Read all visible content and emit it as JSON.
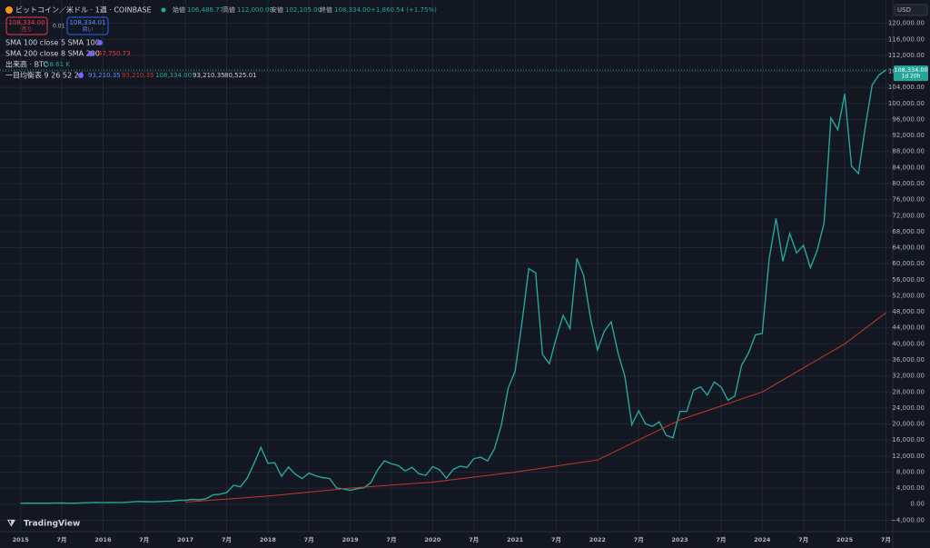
{
  "header": {
    "symbol": "ビットコイン／米ドル · 1週 · COINBASE",
    "open_label": "始値",
    "open": "106,488.77",
    "high_label": "高値",
    "high": "112,000.00",
    "low_label": "安値",
    "low": "102,105.00",
    "close_label": "終値",
    "close": "108,334.00",
    "change": "+1,860.54 (+1.75%)",
    "sell_price": "108,334.00",
    "sell": "売り",
    "spread": "0.01",
    "buy_price": "108,334.01",
    "buy": "買い",
    "sma100": "SMA 100 close 5 SMA 100",
    "sma200": "SMA 200 close 8 SMA 200",
    "sma200_value": "47,750.73",
    "volume": "出来高 · BTC",
    "volume_value": "58.61 K",
    "ichimoku": "一目均衡表 9 26 52 26",
    "ichimoku_values": [
      "93,210.35",
      "93,210.35",
      "108,334.00",
      "93,210.35",
      "80,525.01"
    ],
    "currency": "USD",
    "countdown": "1d 20h",
    "logo": "TradingView"
  },
  "chart_data": {
    "type": "line",
    "grid": true,
    "xlim": [
      "2014-10",
      "2025-08"
    ],
    "ylim": [
      -8000,
      124000
    ],
    "last_price": {
      "value": 108334,
      "label": "108,334.00"
    },
    "series": [
      {
        "name": "BTC",
        "color": "#26a69a",
        "x": [
          "2015-01",
          "2015-02",
          "2015-03",
          "2015-04",
          "2015-05",
          "2015-06",
          "2015-07",
          "2015-08",
          "2015-09",
          "2015-10",
          "2015-11",
          "2015-12",
          "2016-01",
          "2016-02",
          "2016-03",
          "2016-04",
          "2016-05",
          "2016-06",
          "2016-07",
          "2016-08",
          "2016-09",
          "2016-10",
          "2016-11",
          "2016-12",
          "2017-01",
          "2017-02",
          "2017-03",
          "2017-04",
          "2017-05",
          "2017-06",
          "2017-07",
          "2017-08",
          "2017-09",
          "2017-10",
          "2017-11",
          "2017-12",
          "2018-01",
          "2018-02",
          "2018-03",
          "2018-04",
          "2018-05",
          "2018-06",
          "2018-07",
          "2018-08",
          "2018-09",
          "2018-10",
          "2018-11",
          "2018-12",
          "2019-01",
          "2019-02",
          "2019-03",
          "2019-04",
          "2019-05",
          "2019-06",
          "2019-07",
          "2019-08",
          "2019-09",
          "2019-10",
          "2019-11",
          "2019-12",
          "2020-01",
          "2020-02",
          "2020-03",
          "2020-04",
          "2020-05",
          "2020-06",
          "2020-07",
          "2020-08",
          "2020-09",
          "2020-10",
          "2020-11",
          "2020-12",
          "2021-01",
          "2021-02",
          "2021-03",
          "2021-04",
          "2021-05",
          "2021-06",
          "2021-07",
          "2021-08",
          "2021-09",
          "2021-10",
          "2021-11",
          "2021-12",
          "2022-01",
          "2022-02",
          "2022-03",
          "2022-04",
          "2022-05",
          "2022-06",
          "2022-07",
          "2022-08",
          "2022-09",
          "2022-10",
          "2022-11",
          "2022-12",
          "2023-01",
          "2023-02",
          "2023-03",
          "2023-04",
          "2023-05",
          "2023-06",
          "2023-07",
          "2023-08",
          "2023-09",
          "2023-10",
          "2023-11",
          "2023-12",
          "2024-01",
          "2024-02",
          "2024-03",
          "2024-04",
          "2024-05",
          "2024-06",
          "2024-07",
          "2024-08",
          "2024-09",
          "2024-10",
          "2024-11",
          "2024-12",
          "2025-01",
          "2025-02",
          "2025-03",
          "2025-04",
          "2025-05",
          "2025-06",
          "2025-07"
        ],
        "values": [
          217,
          254,
          244,
          236,
          230,
          263,
          284,
          230,
          236,
          314,
          377,
          430,
          368,
          437,
          416,
          448,
          531,
          673,
          624,
          575,
          609,
          698,
          742,
          963,
          970,
          1190,
          1080,
          1350,
          2300,
          2480,
          2875,
          4700,
          4340,
          6470,
          10200,
          14150,
          10220,
          10330,
          6930,
          9240,
          7500,
          6400,
          7730,
          7030,
          6630,
          6370,
          4040,
          3740,
          3460,
          3850,
          4100,
          5350,
          8570,
          10820,
          10080,
          9630,
          8290,
          9200,
          7570,
          7190,
          9350,
          8600,
          6440,
          8660,
          9460,
          9140,
          11350,
          11700,
          10780,
          13800,
          19700,
          28990,
          33100,
          45240,
          58800,
          57700,
          37300,
          35040,
          41500,
          47100,
          43800,
          61300,
          57000,
          46300,
          38500,
          43200,
          45500,
          37700,
          31800,
          19800,
          23300,
          20050,
          19430,
          20500,
          17170,
          16550,
          23140,
          23150,
          28480,
          29270,
          27220,
          30480,
          29230,
          25940,
          26970,
          34660,
          37720,
          42270,
          42580,
          61200,
          71300,
          60640,
          67500,
          62700,
          64600,
          58970,
          63300,
          70200,
          96400,
          93400,
          102400,
          84350,
          82500,
          94200,
          104600,
          107100,
          108334
        ]
      },
      {
        "name": "SMA 200",
        "color": "#c0392b",
        "x": [
          "2017-01",
          "2018-01",
          "2019-01",
          "2020-01",
          "2021-01",
          "2022-01",
          "2023-01",
          "2024-01",
          "2025-01",
          "2025-07"
        ],
        "values": [
          500,
          2000,
          4000,
          5500,
          8000,
          11000,
          21000,
          28000,
          40000,
          47750
        ]
      }
    ],
    "xticks": [
      {
        "value": "2015-01",
        "label": "2015"
      },
      {
        "value": "2015-07",
        "label": "7月"
      },
      {
        "value": "2016-01",
        "label": "2016"
      },
      {
        "value": "2016-07",
        "label": "7月"
      },
      {
        "value": "2017-01",
        "label": "2017"
      },
      {
        "value": "2017-07",
        "label": "7月"
      },
      {
        "value": "2018-01",
        "label": "2018"
      },
      {
        "value": "2018-07",
        "label": "7月"
      },
      {
        "value": "2019-01",
        "label": "2019"
      },
      {
        "value": "2019-07",
        "label": "7月"
      },
      {
        "value": "2020-01",
        "label": "2020"
      },
      {
        "value": "2020-07",
        "label": "7月"
      },
      {
        "value": "2021-01",
        "label": "2021"
      },
      {
        "value": "2021-07",
        "label": "7月"
      },
      {
        "value": "2022-01",
        "label": "2022"
      },
      {
        "value": "2022-07",
        "label": "7月"
      },
      {
        "value": "2023-01",
        "label": "2023"
      },
      {
        "value": "2023-07",
        "label": "7月"
      },
      {
        "value": "2024-01",
        "label": "2024"
      },
      {
        "value": "2024-07",
        "label": "7月"
      },
      {
        "value": "2025-01",
        "label": "2025"
      },
      {
        "value": "2025-07",
        "label": "7月"
      }
    ],
    "yticks": [
      {
        "value": 120000,
        "label": "120,000.00"
      },
      {
        "value": 116000,
        "label": "116,000.00"
      },
      {
        "value": 112000,
        "label": "112,000.00"
      },
      {
        "value": 108000,
        "label": "108,000.00"
      },
      {
        "value": 104000,
        "label": "104,000.00"
      },
      {
        "value": 100000,
        "label": "100,000.00"
      },
      {
        "value": 96000,
        "label": "96,000.00"
      },
      {
        "value": 92000,
        "label": "92,000.00"
      },
      {
        "value": 88000,
        "label": "88,000.00"
      },
      {
        "value": 84000,
        "label": "84,000.00"
      },
      {
        "value": 80000,
        "label": "80,000.00"
      },
      {
        "value": 76000,
        "label": "76,000.00"
      },
      {
        "value": 72000,
        "label": "72,000.00"
      },
      {
        "value": 68000,
        "label": "68,000.00"
      },
      {
        "value": 64000,
        "label": "64,000.00"
      },
      {
        "value": 60000,
        "label": "60,000.00"
      },
      {
        "value": 56000,
        "label": "56,000.00"
      },
      {
        "value": 52000,
        "label": "52,000.00"
      },
      {
        "value": 48000,
        "label": "48,000.00"
      },
      {
        "value": 44000,
        "label": "44,000.00"
      },
      {
        "value": 40000,
        "label": "40,000.00"
      },
      {
        "value": 36000,
        "label": "36,000.00"
      },
      {
        "value": 32000,
        "label": "32,000.00"
      },
      {
        "value": 28000,
        "label": "28,000.00"
      },
      {
        "value": 24000,
        "label": "24,000.00"
      },
      {
        "value": 20000,
        "label": "20,000.00"
      },
      {
        "value": 16000,
        "label": "16,000.00"
      },
      {
        "value": 12000,
        "label": "12,000.00"
      },
      {
        "value": 8000,
        "label": "8,000.00"
      },
      {
        "value": 4000,
        "label": "4,000.00"
      },
      {
        "value": 0,
        "label": "0.00"
      },
      {
        "value": -4000,
        "label": "−4,000.00"
      }
    ]
  }
}
